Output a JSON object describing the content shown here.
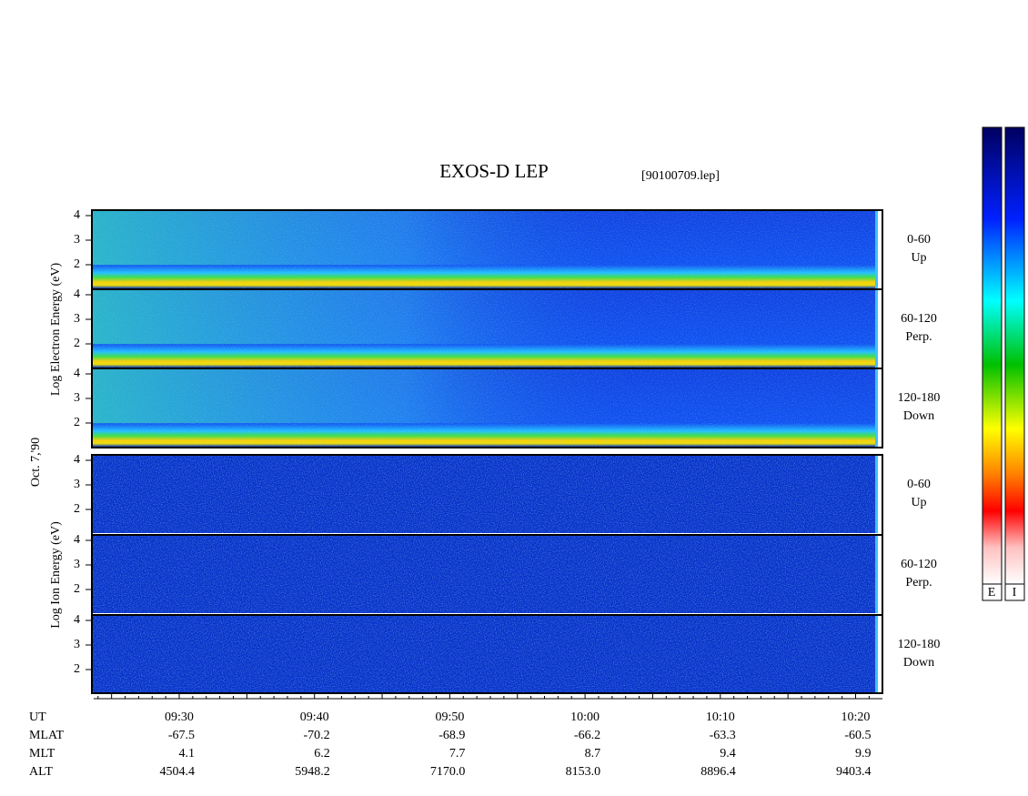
{
  "title": "EXOS-D LEP",
  "file": "[90100709.lep]",
  "left_labels": {
    "electron": "Log Electron Energy (eV)",
    "date": "Oct. 7,'90",
    "ion": "Log Ion Energy (eV)"
  },
  "energy_ticks": [
    "4",
    "3",
    "2"
  ],
  "panels": [
    {
      "angle": "0-60",
      "direction": "Up"
    },
    {
      "angle": "60-120",
      "direction": "Perp."
    },
    {
      "angle": "120-180",
      "direction": "Down"
    },
    {
      "angle": "0-60",
      "direction": "Up"
    },
    {
      "angle": "60-120",
      "direction": "Perp."
    },
    {
      "angle": "120-180",
      "direction": "Down"
    }
  ],
  "colorbar_labels": [
    "E",
    "I"
  ],
  "time_axis": {
    "rows": [
      {
        "name": "UT",
        "values": [
          "09:30",
          "09:40",
          "09:50",
          "10:00",
          "10:10",
          "10:20"
        ]
      },
      {
        "name": "MLAT",
        "values": [
          "-67.5",
          "-70.2",
          "-68.9",
          "-66.2",
          "-63.3",
          "-60.5"
        ]
      },
      {
        "name": "MLT",
        "values": [
          "4.1",
          "6.2",
          "7.7",
          "8.7",
          "9.4",
          "9.9"
        ]
      },
      {
        "name": "ALT",
        "values": [
          "4504.4",
          "5948.2",
          "7170.0",
          "8153.0",
          "8896.4",
          "9403.4"
        ]
      }
    ]
  }
}
